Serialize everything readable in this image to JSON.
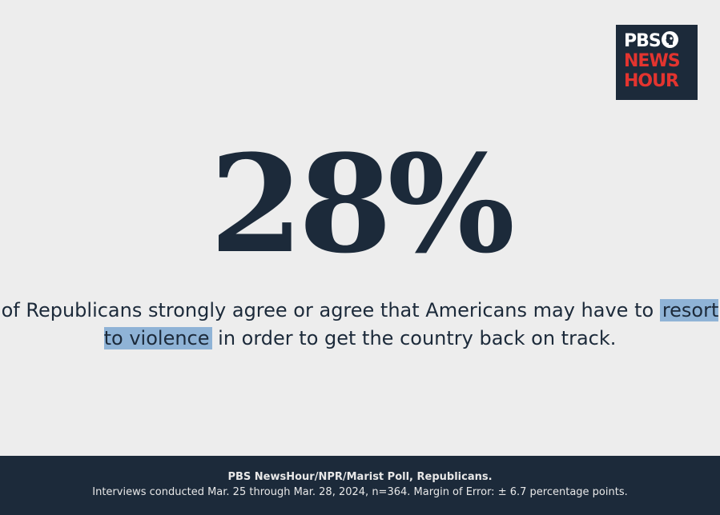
{
  "logo": {
    "line1": "PBS",
    "line2": "NEWS",
    "line3": "HOUR",
    "icon": "pbs-head-icon",
    "colors": {
      "background": "#1c2a3a",
      "pbs": "#ffffff",
      "accent": "#e3342f"
    }
  },
  "stat": {
    "value": "28%"
  },
  "statement": {
    "before": "of Republicans strongly agree or agree that Americans may have to",
    "highlight": "resort to violence",
    "after": "in order to get the country back on track."
  },
  "footer": {
    "source": "PBS NewsHour/NPR/Marist Poll, Republicans.",
    "details": "Interviews conducted Mar. 25 through Mar. 28, 2024, n=364. Margin of Error:  ± 6.7 percentage points."
  },
  "colors": {
    "background": "#ededed",
    "text": "#1c2a3a",
    "highlight": "#8fb3d6",
    "footer_background": "#1c2a3a",
    "footer_text": "#e8e8e8"
  }
}
